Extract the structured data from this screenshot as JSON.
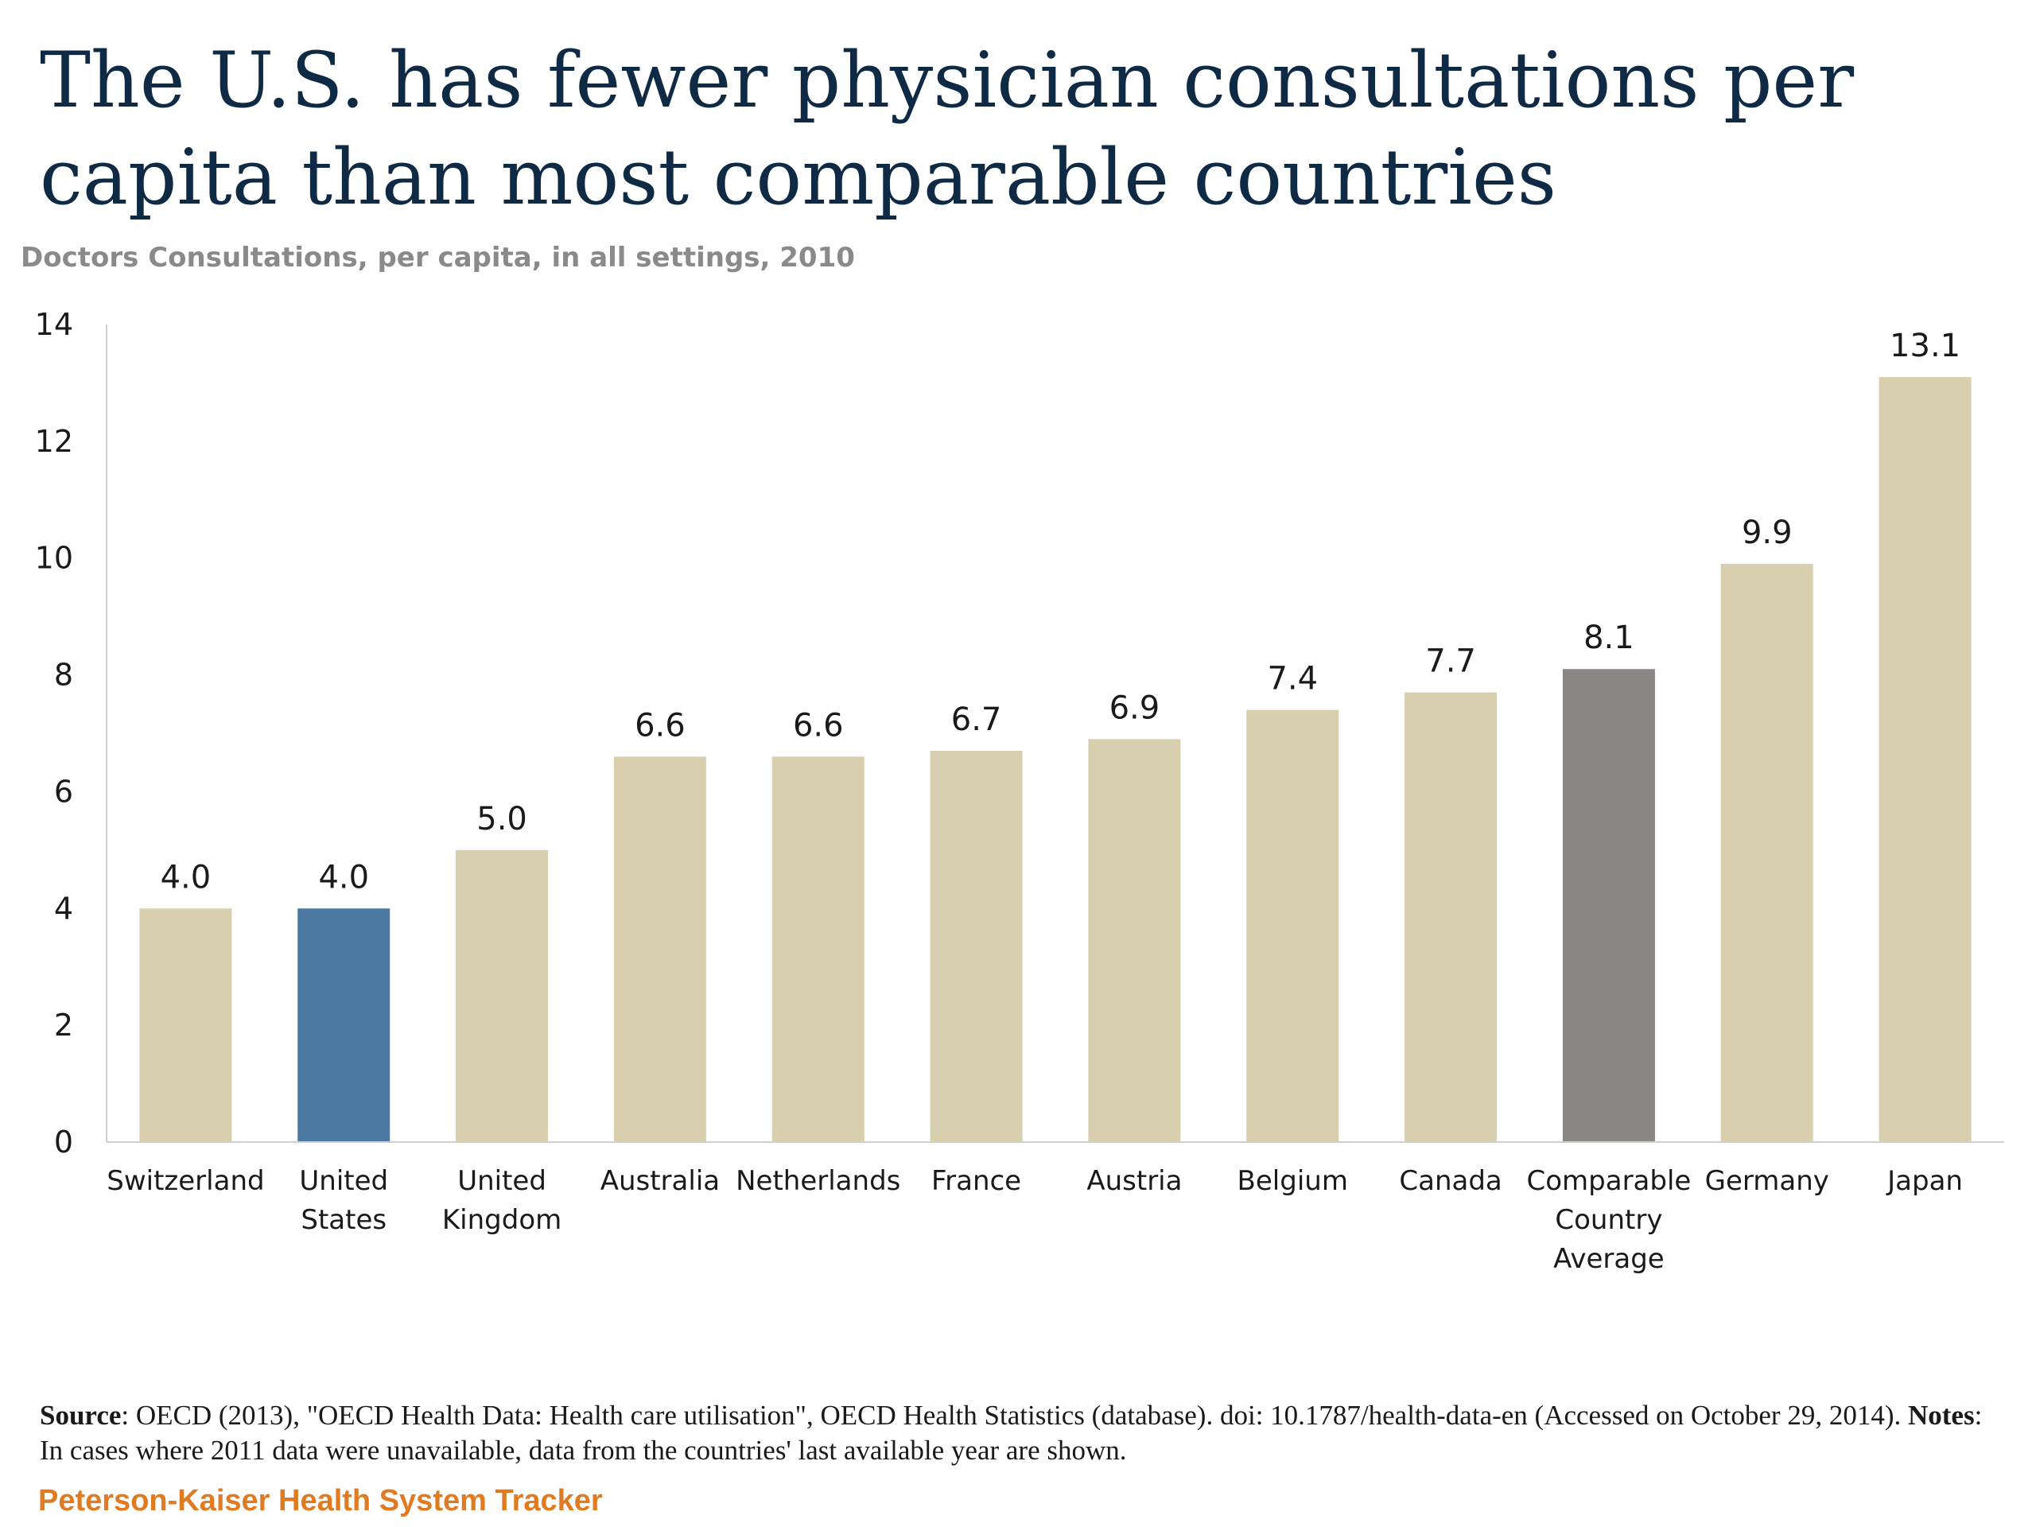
{
  "page": {
    "title": "The U.S. has fewer physician consultations per capita than most comparable countries",
    "subtitle": "Doctors Consultations, per capita, in all settings, 2010",
    "source_label": "Source",
    "source_text": ": OECD (2013), \"OECD Health Data: Health care utilisation\", OECD Health Statistics (database).  doi: 10.1787/health-data-en (Accessed on October 29, 2014). ",
    "notes_label": "Notes",
    "notes_text": ": In cases where 2011 data were unavailable, data from the countries' last available year are shown.",
    "brand": "Peterson-Kaiser Health System Tracker"
  },
  "chart_data": {
    "type": "bar",
    "title": "",
    "xlabel": "",
    "ylabel": "",
    "ylim": [
      0,
      14
    ],
    "yticks": [
      0,
      2,
      4,
      6,
      8,
      10,
      12,
      14
    ],
    "grid": false,
    "legend": "none",
    "categories": [
      "Switzerland",
      "United States",
      "United Kingdom",
      "Australia",
      "Netherlands",
      "France",
      "Austria",
      "Belgium",
      "Canada",
      "Comparable Country Average",
      "Germany",
      "Japan"
    ],
    "category_lines": [
      [
        "Switzerland"
      ],
      [
        "United",
        "States"
      ],
      [
        "United",
        "Kingdom"
      ],
      [
        "Australia"
      ],
      [
        "Netherlands"
      ],
      [
        "France"
      ],
      [
        "Austria"
      ],
      [
        "Belgium"
      ],
      [
        "Canada"
      ],
      [
        "Comparable",
        "Country",
        "Average"
      ],
      [
        "Germany"
      ],
      [
        "Japan"
      ]
    ],
    "values": [
      4.0,
      4.0,
      5.0,
      6.6,
      6.6,
      6.7,
      6.9,
      7.4,
      7.7,
      8.1,
      9.9,
      13.1
    ],
    "value_labels": [
      "4.0",
      "4.0",
      "5.0",
      "6.6",
      "6.6",
      "6.7",
      "6.9",
      "7.4",
      "7.7",
      "8.1",
      "9.9",
      "13.1"
    ],
    "colors": {
      "default": "#d8cfae",
      "United States": "#4b79a1",
      "Comparable Country Average": "#8a8686"
    }
  }
}
